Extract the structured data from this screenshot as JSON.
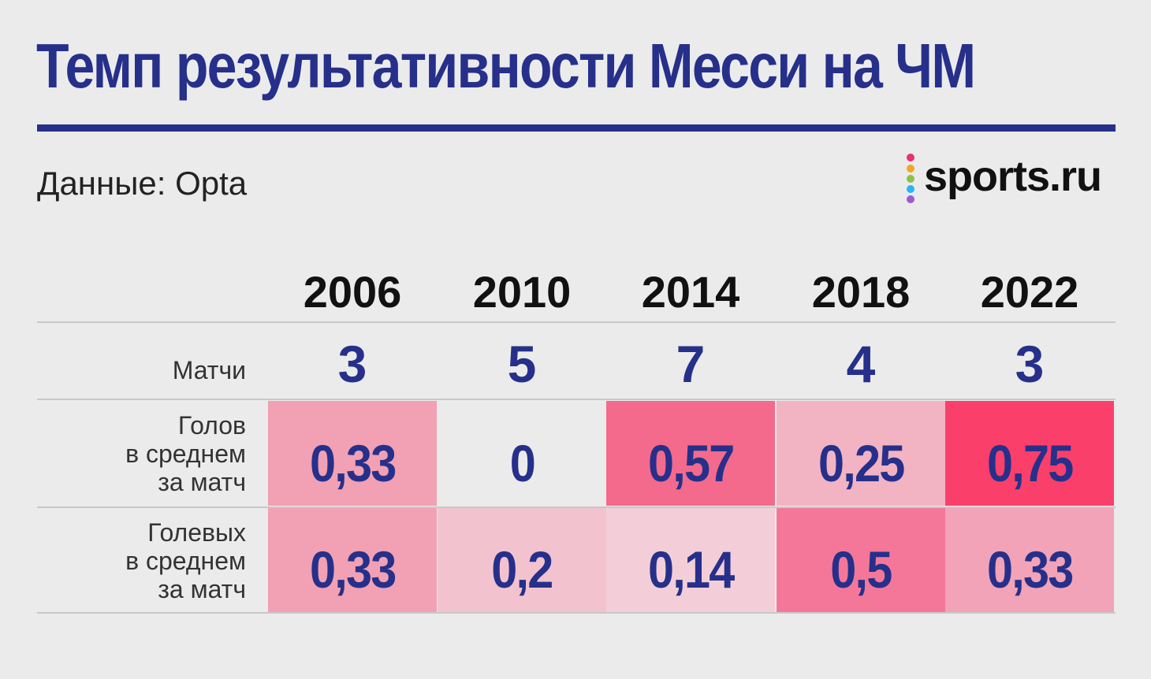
{
  "title": "Темп результативности Месси на ЧМ",
  "source": "Данные: Opta",
  "logo": {
    "text": "sports.ru",
    "dot_colors": [
      "#e8336b",
      "#f5a623",
      "#8bc34a",
      "#29b6f6",
      "#9c5bd6"
    ]
  },
  "colors": {
    "title": "#26308a",
    "value_text": "#26308a",
    "background": "#ebebeb"
  },
  "chart_data": {
    "type": "table",
    "title": "Темп результативности Месси на ЧМ",
    "columns": [
      "2006",
      "2010",
      "2014",
      "2018",
      "2022"
    ],
    "rows": [
      {
        "label": "Матчи",
        "values": [
          3,
          5,
          7,
          4,
          3
        ],
        "display": [
          "3",
          "5",
          "7",
          "4",
          "3"
        ]
      },
      {
        "label_lines": [
          "Голов",
          "в среднем",
          "за матч"
        ],
        "values": [
          0.33,
          0,
          0.57,
          0.25,
          0.75
        ],
        "display": [
          "0,33",
          "0",
          "0,57",
          "0,25",
          "0,75"
        ],
        "cell_colors": [
          "#f2a0b4",
          "#ebebeb",
          "#f46a8c",
          "#f2b3c3",
          "#fb3f6b"
        ]
      },
      {
        "label_lines": [
          "Голевых",
          "в среднем",
          "за матч"
        ],
        "values": [
          0.33,
          0.2,
          0.14,
          0.5,
          0.33
        ],
        "display": [
          "0,33",
          "0,2",
          "0,14",
          "0,5",
          "0,33"
        ],
        "cell_colors": [
          "#f2a0b4",
          "#f3c2cf",
          "#f3ced8",
          "#f4779a",
          "#f2a3b7"
        ]
      }
    ]
  }
}
